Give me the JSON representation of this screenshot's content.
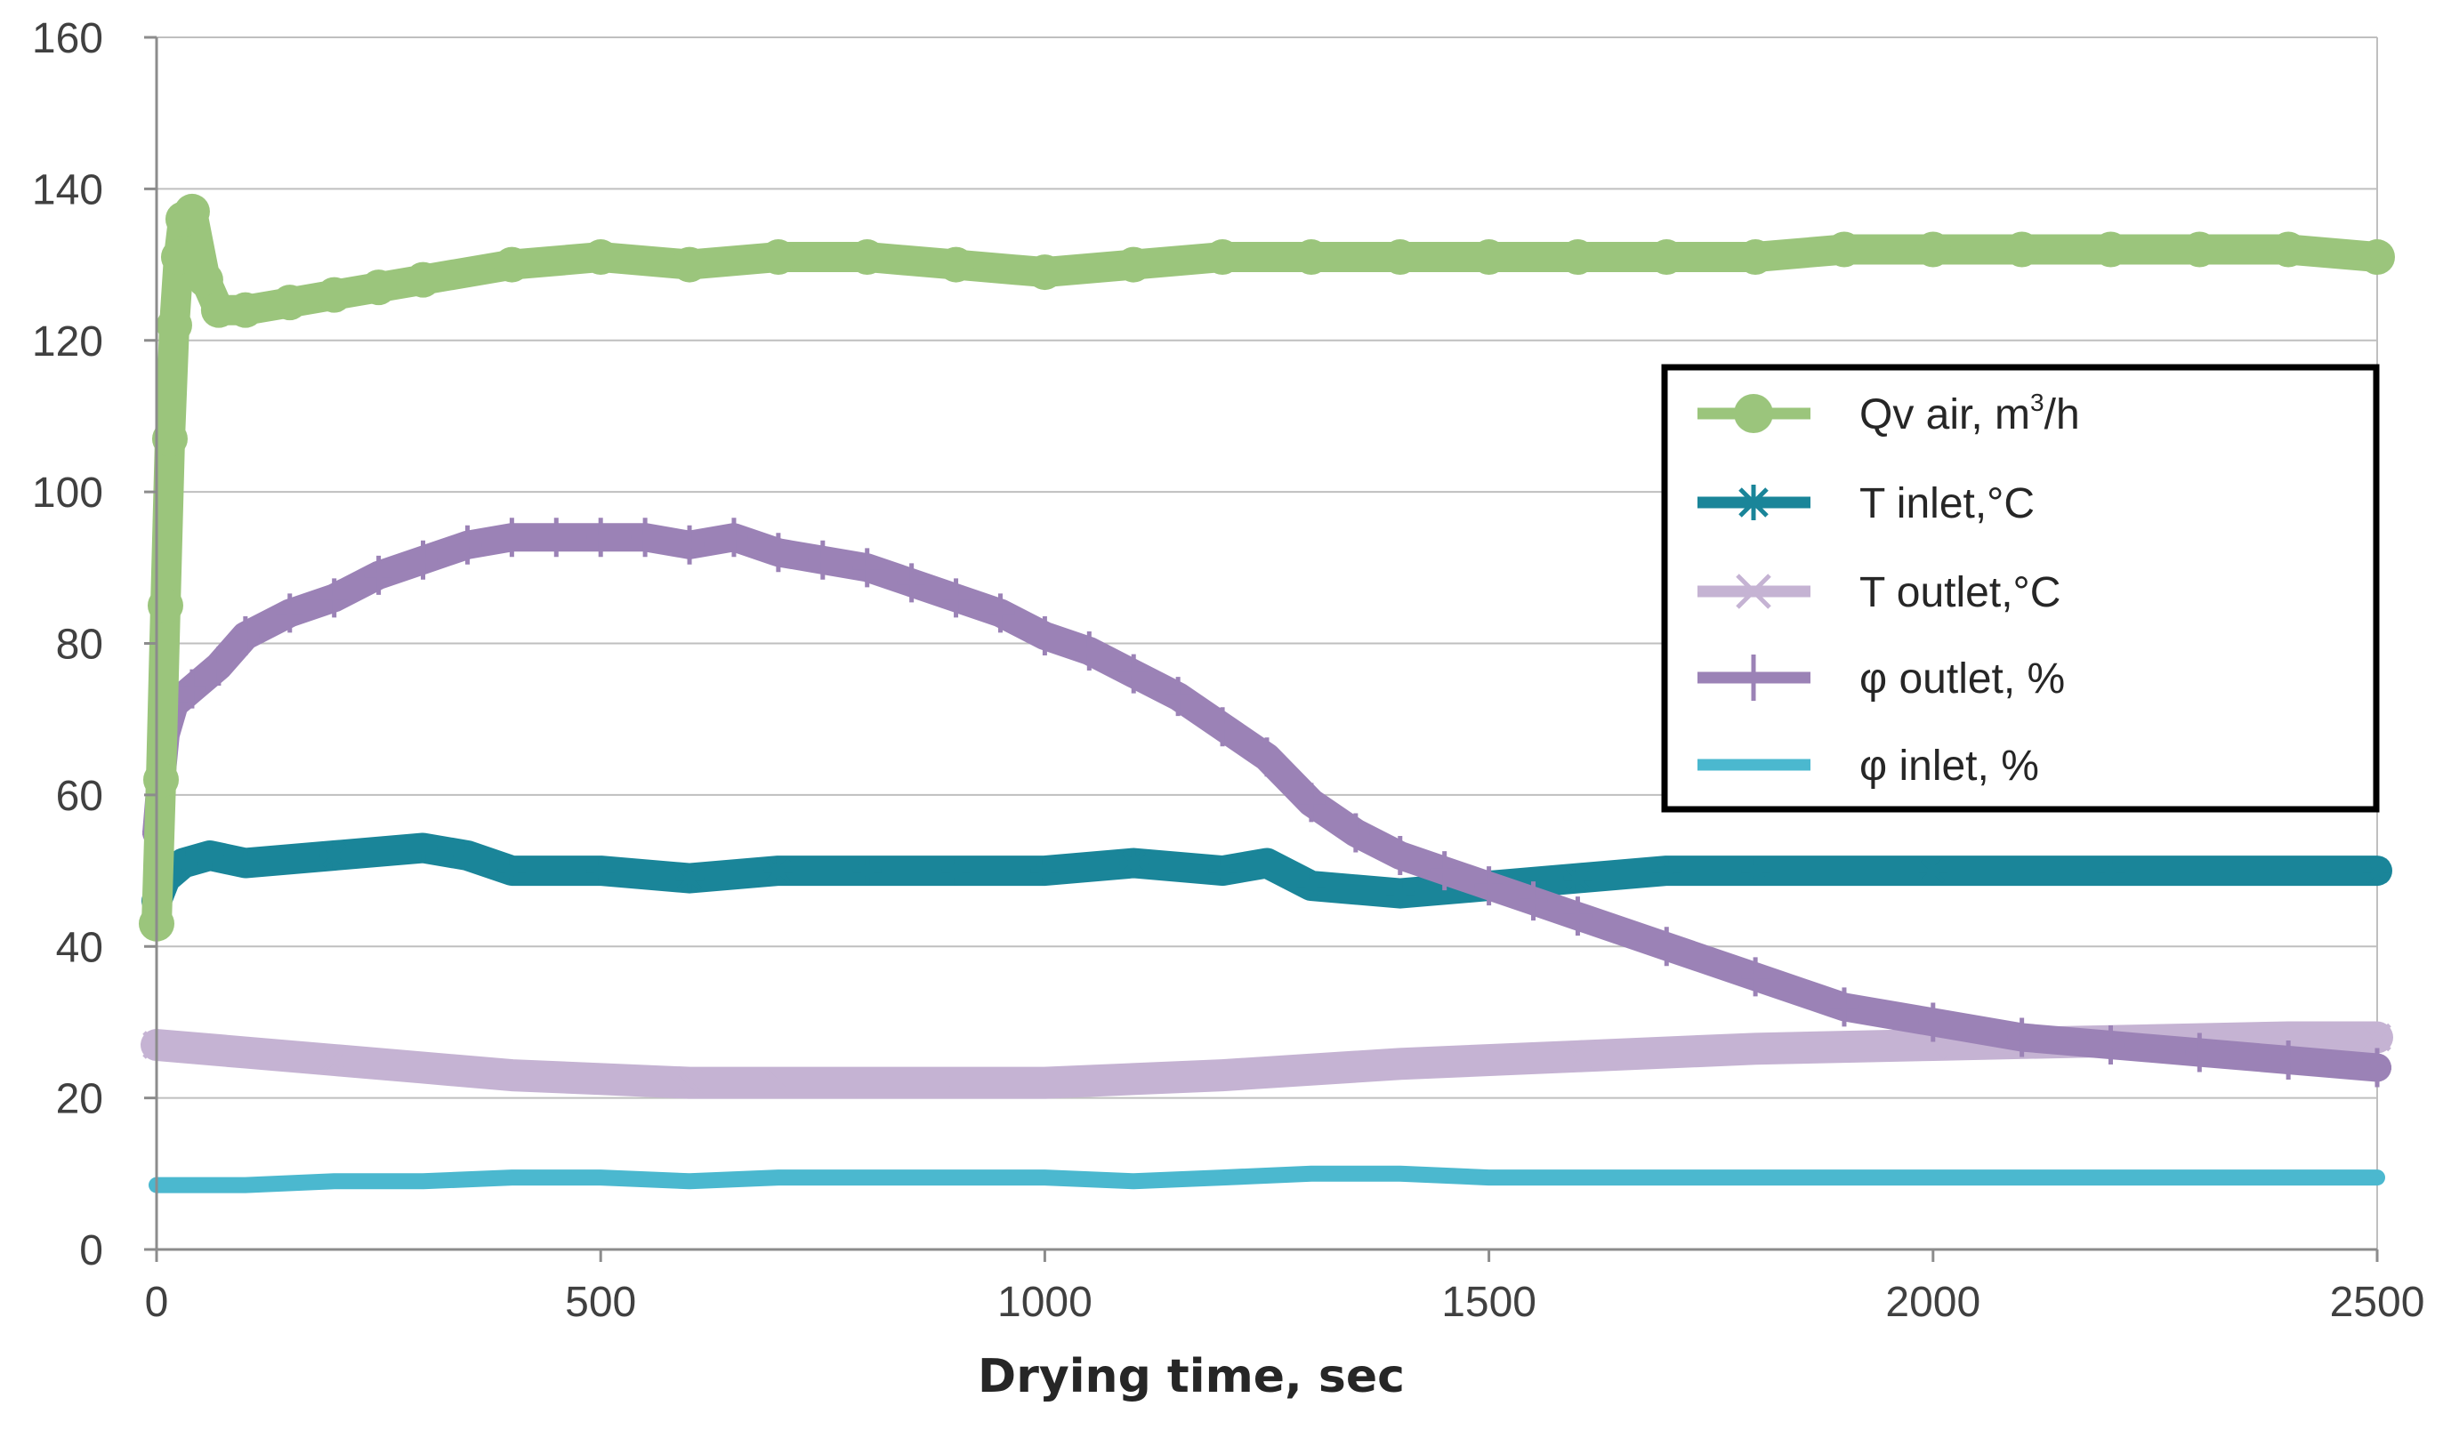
{
  "chart_data": {
    "type": "line",
    "title": "",
    "xlabel": "Drying time, sec",
    "ylabel": "",
    "xlim": [
      0,
      2500
    ],
    "ylim": [
      0,
      160
    ],
    "xticks": [
      0,
      500,
      1000,
      1500,
      2000,
      2500
    ],
    "yticks": [
      0,
      20,
      40,
      60,
      80,
      100,
      120,
      140,
      160
    ],
    "xtick_labels": [
      "0",
      "500",
      "1000",
      "1500",
      "2000",
      "2500"
    ],
    "ytick_labels": [
      "0",
      "20",
      "40",
      "60",
      "80",
      "100",
      "120",
      "140",
      "160"
    ],
    "grid": "horizontal",
    "legend_position": "right",
    "series": [
      {
        "name": "Qv air, m³/h",
        "legend_parts": {
          "main": "Qv air, m",
          "sup": "3",
          "tail": "/h"
        },
        "color": "#9BC57C",
        "marker": "circle",
        "x": [
          0,
          5,
          10,
          15,
          20,
          25,
          30,
          40,
          55,
          70,
          100,
          150,
          200,
          250,
          300,
          400,
          500,
          600,
          700,
          800,
          900,
          1000,
          1100,
          1200,
          1300,
          1400,
          1500,
          1600,
          1700,
          1800,
          1900,
          2000,
          2100,
          2200,
          2300,
          2400,
          2500
        ],
        "y": [
          43,
          62,
          85,
          107,
          122,
          131,
          136,
          137,
          128,
          124,
          124,
          125,
          126,
          127,
          128,
          130,
          131,
          130,
          131,
          131,
          130,
          129,
          130,
          131,
          131,
          131,
          131,
          131,
          131,
          131,
          132,
          132,
          132,
          132,
          132,
          132,
          131
        ]
      },
      {
        "name": "T inlet,°C",
        "color": "#1A8599",
        "marker": "asterisk",
        "x": [
          0,
          10,
          30,
          60,
          100,
          200,
          300,
          350,
          400,
          500,
          600,
          700,
          800,
          900,
          1000,
          1100,
          1200,
          1250,
          1300,
          1400,
          1500,
          1600,
          1700,
          1800,
          2000,
          2200,
          2500
        ],
        "y": [
          46,
          49,
          51,
          52,
          51,
          52,
          53,
          52,
          50,
          50,
          49,
          50,
          50,
          50,
          50,
          51,
          50,
          51,
          48,
          47,
          48,
          49,
          50,
          50,
          50,
          50,
          50
        ]
      },
      {
        "name": "T outlet,°C",
        "color": "#C5B3D3",
        "marker": "x",
        "x": [
          0,
          100,
          200,
          300,
          400,
          500,
          600,
          700,
          800,
          900,
          1000,
          1200,
          1400,
          1600,
          1800,
          2000,
          2200,
          2400,
          2500
        ],
        "y": [
          27,
          26,
          25,
          24,
          23,
          22.5,
          22,
          22,
          22,
          22,
          22,
          23,
          24.5,
          25.5,
          26.5,
          27,
          27.5,
          28,
          28
        ]
      },
      {
        "name": "φ outlet, %",
        "color": "#9B82B6",
        "marker": "plus",
        "x": [
          0,
          5,
          10,
          20,
          40,
          70,
          100,
          150,
          200,
          250,
          300,
          350,
          400,
          450,
          500,
          550,
          600,
          650,
          700,
          750,
          800,
          850,
          900,
          950,
          1000,
          1050,
          1100,
          1150,
          1200,
          1250,
          1300,
          1350,
          1400,
          1450,
          1500,
          1550,
          1600,
          1700,
          1800,
          1900,
          2000,
          2100,
          2200,
          2300,
          2400,
          2500
        ],
        "y": [
          55,
          62,
          68,
          72,
          74,
          77,
          81,
          84,
          86,
          89,
          91,
          93,
          94,
          94,
          94,
          94,
          93,
          94,
          92,
          91,
          90,
          88,
          86,
          84,
          81,
          79,
          76,
          73,
          69,
          65,
          59,
          55,
          52,
          50,
          48,
          46,
          44,
          40,
          36,
          32,
          30,
          28,
          27,
          26,
          25,
          24
        ]
      },
      {
        "name": "φ inlet, %",
        "color": "#4BB8CF",
        "marker": "none",
        "x": [
          0,
          100,
          200,
          300,
          400,
          500,
          600,
          700,
          800,
          900,
          1000,
          1100,
          1200,
          1300,
          1400,
          1500,
          1600,
          1800,
          2000,
          2200,
          2400,
          2500
        ],
        "y": [
          8.5,
          8.5,
          9,
          9,
          9.5,
          9.5,
          9,
          9.5,
          9.5,
          9.5,
          9.5,
          9,
          9.5,
          10,
          10,
          9.5,
          9.5,
          9.5,
          9.5,
          9.5,
          9.5,
          9.5
        ]
      }
    ]
  }
}
